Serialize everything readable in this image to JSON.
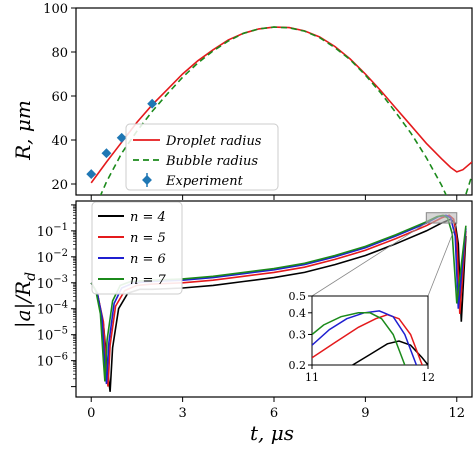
{
  "chart_data": [
    {
      "type": "line",
      "panel": "top",
      "xlim": [
        -0.5,
        12.5
      ],
      "ylim": [
        15,
        100
      ],
      "yticks": [
        20,
        40,
        60,
        80,
        100
      ],
      "ylabel": "R, μm",
      "grid": false,
      "legend_placement": "lower-center",
      "series": [
        {
          "name": "Droplet radius",
          "style": "solid",
          "color": "#e41a1c",
          "x": [
            0,
            0.5,
            1,
            1.5,
            2,
            2.5,
            3,
            3.5,
            4,
            4.5,
            5,
            5.5,
            6,
            6.5,
            7,
            7.5,
            8,
            8.5,
            9,
            9.5,
            10,
            10.5,
            11,
            11.5,
            11.8,
            12,
            12.2,
            12.5
          ],
          "y": [
            20.5,
            30,
            39,
            48,
            56,
            63,
            70,
            76,
            81,
            85.5,
            88.5,
            90.5,
            91.3,
            91.1,
            89.6,
            86.8,
            82.5,
            76.8,
            70,
            62.5,
            54.5,
            46.5,
            38.5,
            31.5,
            27.5,
            25.5,
            26.5,
            30
          ]
        },
        {
          "name": "Bubble radius",
          "style": "dashed",
          "color": "#1b8a1b",
          "x": [
            0,
            0.25,
            0.5,
            1,
            1.5,
            2,
            2.5,
            3,
            3.5,
            4,
            4.5,
            5,
            5.5,
            6,
            6.5,
            7,
            7.5,
            8,
            8.5,
            9,
            9.5,
            10,
            10.5,
            11,
            11.5,
            11.8,
            12,
            12.2,
            12.5
          ],
          "y": [
            6,
            13,
            21,
            34,
            44,
            53,
            61,
            68.5,
            75,
            80.5,
            85,
            88.5,
            90.5,
            91.3,
            91,
            89.5,
            86.5,
            82,
            76.5,
            69.5,
            61.5,
            52.5,
            43,
            32,
            19.5,
            10.5,
            6,
            11,
            24
          ]
        },
        {
          "name": "Experiment",
          "style": "markers",
          "color": "#1f77b4",
          "x": [
            0,
            0.5,
            1,
            2
          ],
          "y": [
            24.5,
            34,
            41,
            56.5
          ]
        }
      ]
    },
    {
      "type": "line",
      "panel": "bottom",
      "xlim": [
        -0.5,
        12.5
      ],
      "ylim_log10": [
        -7.4,
        0.15
      ],
      "yscale": "log",
      "xticks": [
        0,
        3,
        6,
        9,
        12
      ],
      "xlabel": "t, μs",
      "ylabel": "|a|/R_d",
      "grid": false,
      "legend_placement": "top-left",
      "series": [
        {
          "name": "n = 4",
          "color": "#000000",
          "x": [
            0,
            0.2,
            0.4,
            0.55,
            0.62,
            0.7,
            0.9,
            1.2,
            1.6,
            2,
            3,
            4,
            5,
            6,
            7,
            8,
            9,
            10,
            11,
            11.5,
            11.8,
            11.95,
            12.05,
            12.15,
            12.3
          ],
          "log10_y": [
            -3,
            -3.4,
            -4.6,
            -6.5,
            -7.2,
            -5.5,
            -4.0,
            -3.4,
            -3.25,
            -3.25,
            -3.2,
            -3.1,
            -2.95,
            -2.8,
            -2.6,
            -2.3,
            -1.95,
            -1.5,
            -1.0,
            -0.7,
            -0.55,
            -0.7,
            -1.5,
            -4.5,
            -1.2
          ]
        },
        {
          "name": "n = 5",
          "color": "#e41a1c",
          "x": [
            0,
            0.2,
            0.4,
            0.5,
            0.55,
            0.62,
            0.8,
            1.1,
            1.5,
            2,
            3,
            4,
            5,
            6,
            7,
            8,
            9,
            10,
            11,
            11.5,
            11.75,
            11.9,
            12.0,
            12.1,
            12.3
          ],
          "log10_y": [
            -3,
            -3.4,
            -4.5,
            -6.4,
            -7.0,
            -5.4,
            -3.9,
            -3.3,
            -3.1,
            -3.05,
            -3.0,
            -2.9,
            -2.75,
            -2.6,
            -2.4,
            -2.1,
            -1.75,
            -1.3,
            -0.8,
            -0.5,
            -0.4,
            -0.55,
            -1.3,
            -4.2,
            -1.0
          ]
        },
        {
          "name": "n = 6",
          "color": "#1f1fd0",
          "x": [
            0,
            0.2,
            0.35,
            0.45,
            0.5,
            0.58,
            0.75,
            1.0,
            1.4,
            2,
            3,
            4,
            5,
            6,
            7,
            8,
            9,
            10,
            11,
            11.4,
            11.65,
            11.8,
            11.95,
            12.05,
            12.3
          ],
          "log10_y": [
            -3,
            -3.4,
            -4.3,
            -6.2,
            -6.9,
            -5.3,
            -3.8,
            -3.2,
            -3.0,
            -2.95,
            -2.9,
            -2.8,
            -2.65,
            -2.5,
            -2.3,
            -2.0,
            -1.65,
            -1.2,
            -0.7,
            -0.45,
            -0.4,
            -0.5,
            -1.2,
            -4.0,
            -0.9
          ]
        },
        {
          "name": "n = 7",
          "color": "#1b8a1b",
          "x": [
            0,
            0.15,
            0.3,
            0.4,
            0.45,
            0.52,
            0.7,
            0.95,
            1.3,
            2,
            3,
            4,
            5,
            6,
            7,
            8,
            9,
            10,
            11,
            11.35,
            11.55,
            11.7,
            11.85,
            12.0,
            12.3
          ],
          "log10_y": [
            -3,
            -3.3,
            -4.2,
            -6.0,
            -6.8,
            -5.2,
            -3.7,
            -3.1,
            -2.95,
            -2.9,
            -2.85,
            -2.75,
            -2.6,
            -2.45,
            -2.25,
            -1.95,
            -1.6,
            -1.15,
            -0.65,
            -0.45,
            -0.4,
            -0.5,
            -1.1,
            -3.8,
            -0.8
          ]
        }
      ],
      "inset": {
        "xlim": [
          11,
          12
        ],
        "ylim": [
          0.2,
          0.5
        ],
        "yscale": "log",
        "xticks": [
          11,
          12
        ],
        "yticks": [
          0.2,
          0.3,
          0.4,
          0.5
        ],
        "series": [
          {
            "name": "n = 4",
            "color": "#000000",
            "x": [
              11.35,
              11.5,
              11.65,
              11.75,
              11.85,
              11.95,
              12.0
            ],
            "y": [
              0.2,
              0.23,
              0.265,
              0.275,
              0.26,
              0.22,
              0.2
            ]
          },
          {
            "name": "n = 5",
            "color": "#e41a1c",
            "x": [
              11.0,
              11.2,
              11.4,
              11.55,
              11.65,
              11.75,
              11.85,
              11.95
            ],
            "y": [
              0.22,
              0.27,
              0.33,
              0.37,
              0.39,
              0.37,
              0.3,
              0.2
            ]
          },
          {
            "name": "n = 6",
            "color": "#1f1fd0",
            "x": [
              11.0,
              11.15,
              11.3,
              11.45,
              11.58,
              11.7,
              11.8,
              11.9
            ],
            "y": [
              0.26,
              0.32,
              0.37,
              0.4,
              0.41,
              0.38,
              0.3,
              0.2
            ]
          },
          {
            "name": "n = 7",
            "color": "#1b8a1b",
            "x": [
              11.0,
              11.1,
              11.25,
              11.4,
              11.5,
              11.6,
              11.7,
              11.8
            ],
            "y": [
              0.3,
              0.34,
              0.38,
              0.4,
              0.4,
              0.37,
              0.3,
              0.2
            ]
          }
        ]
      }
    }
  ],
  "labels": {
    "ylabel_top_main": "R, ",
    "ylabel_top_unit": "μm",
    "ylabel_bottom_main": "|a|/R",
    "ylabel_bottom_sub": "d",
    "xlabel_main": "t, ",
    "xlabel_unit": "μs"
  }
}
